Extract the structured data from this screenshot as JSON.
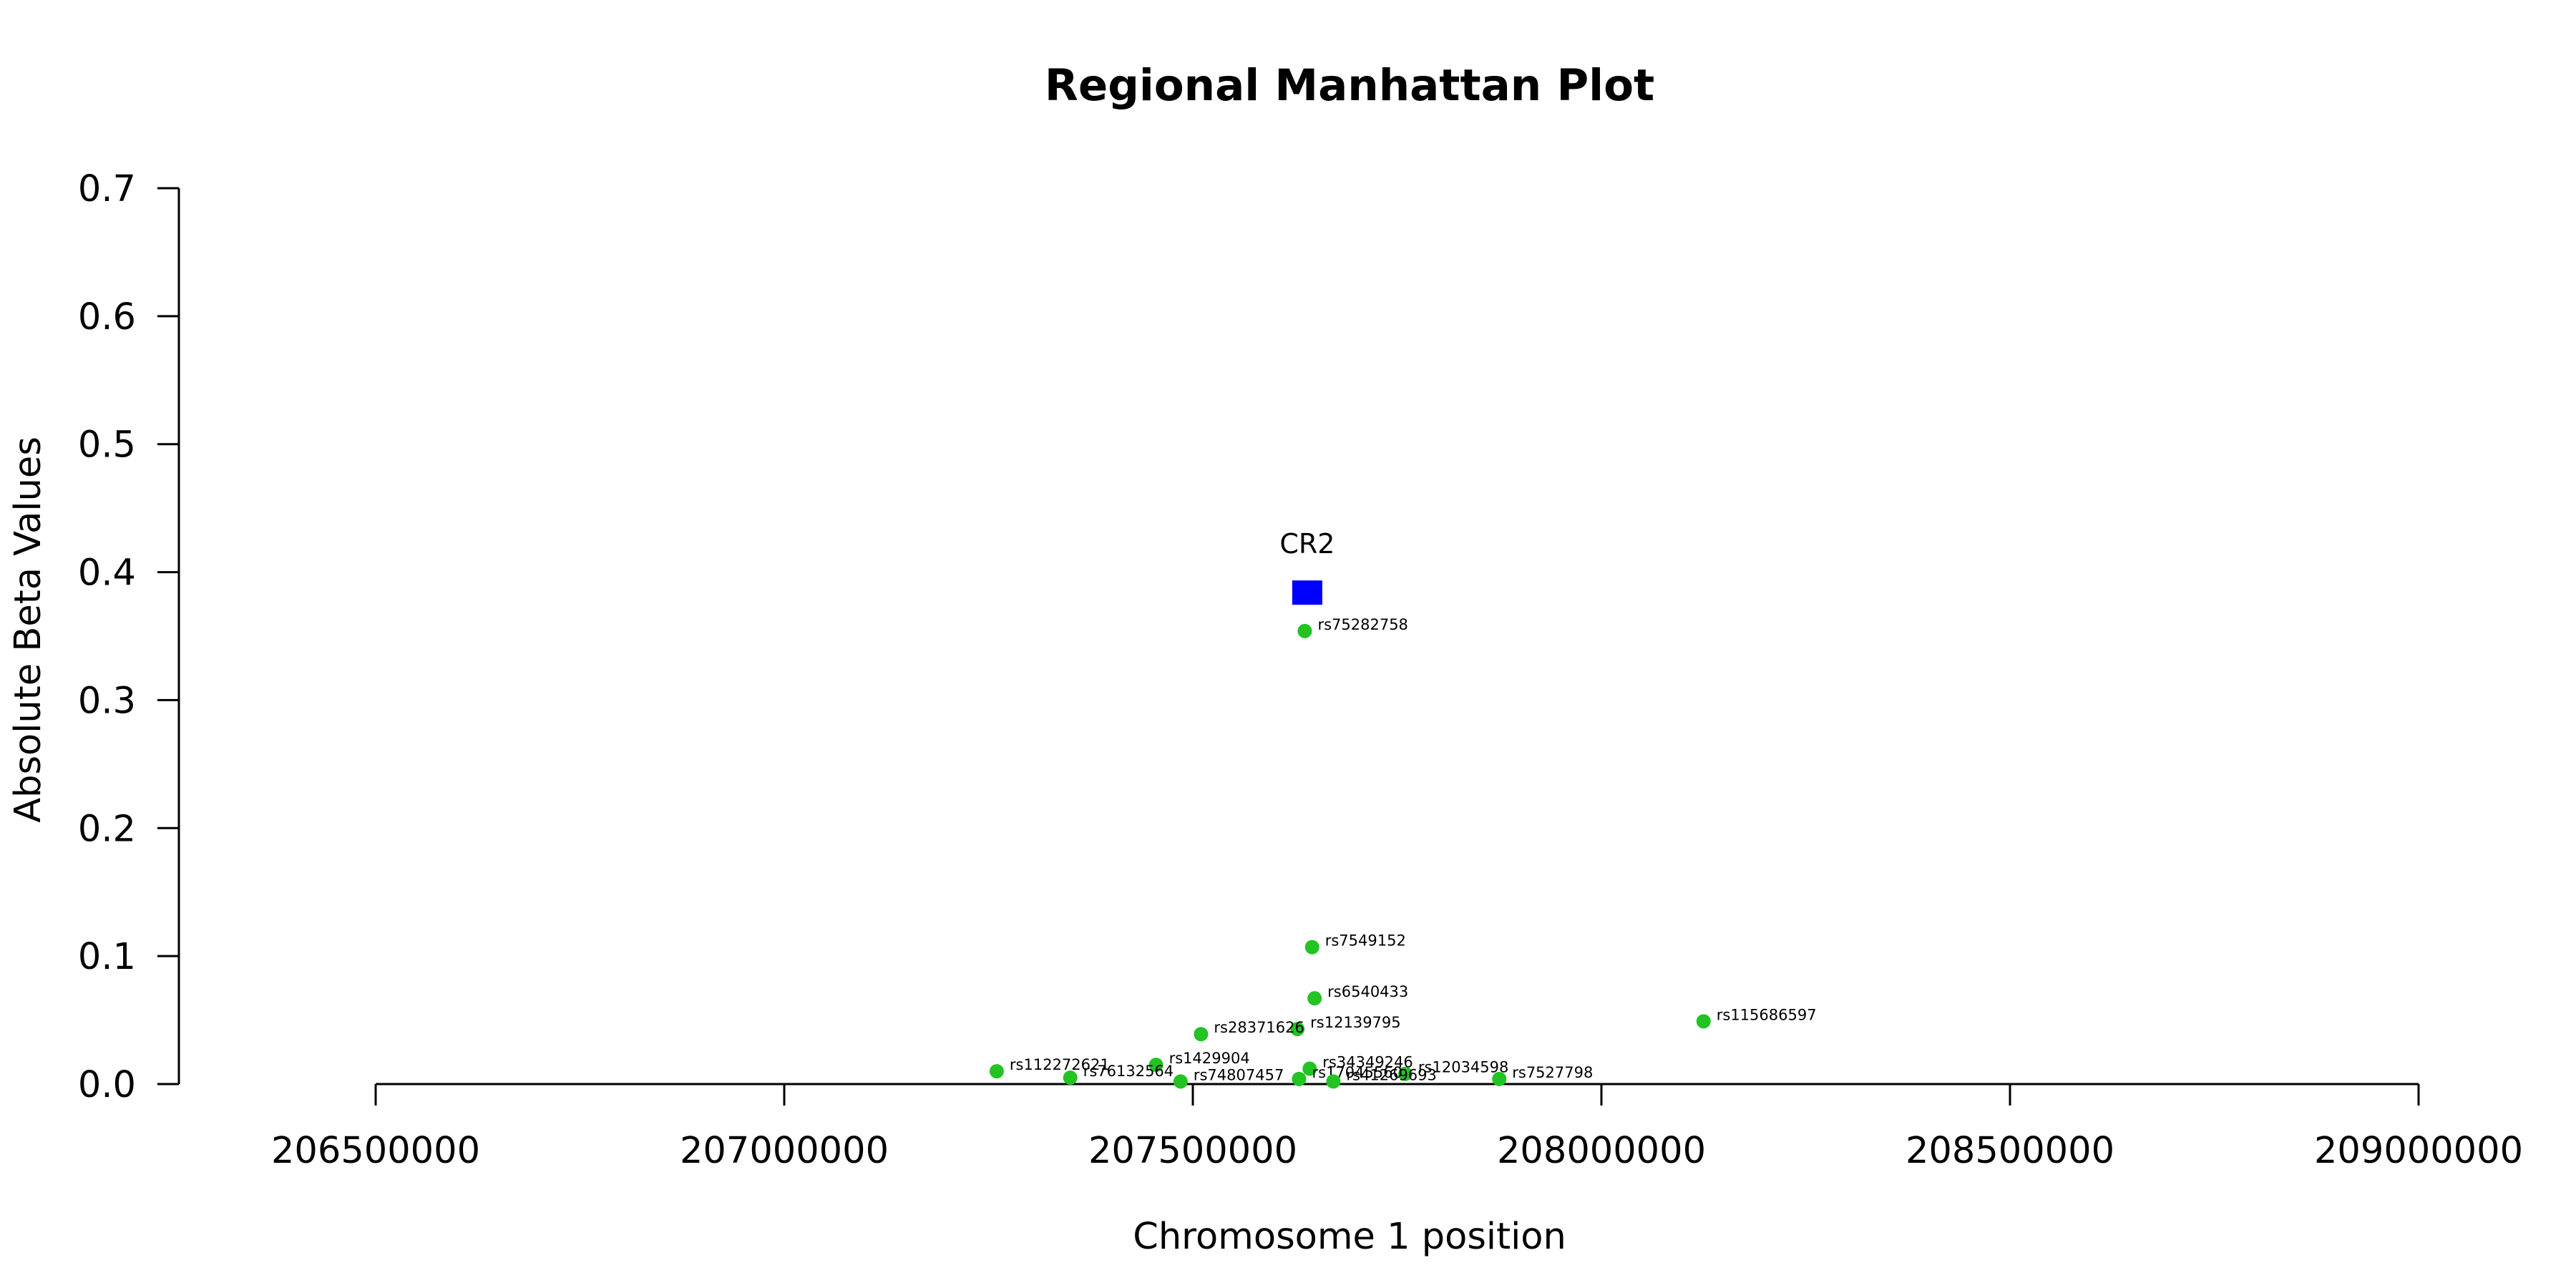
{
  "chart_data": {
    "type": "scatter",
    "title": "Regional Manhattan Plot",
    "xlabel": "Chromosome 1 position",
    "ylabel": "Absolute Beta Values",
    "xlim": [
      206500000,
      209000000
    ],
    "ylim": [
      0,
      0.7
    ],
    "xticks": [
      "206500000",
      "207000000",
      "207500000",
      "208000000",
      "208500000",
      "209000000"
    ],
    "yticks": [
      "0.0",
      "0.1",
      "0.2",
      "0.3",
      "0.4",
      "0.5",
      "0.6",
      "0.7"
    ],
    "colors": {
      "snp": "#22c322",
      "gene": "#0000ff",
      "axis": "#000000"
    },
    "gene": {
      "name": "CR2",
      "x": 207640000,
      "y": 0.384
    },
    "points": [
      {
        "label": "rs75282758",
        "x": 207637000,
        "y": 0.354
      },
      {
        "label": "rs7549152",
        "x": 207646000,
        "y": 0.107
      },
      {
        "label": "rs6540433",
        "x": 207649000,
        "y": 0.067
      },
      {
        "label": "rs115686597",
        "x": 208125000,
        "y": 0.049
      },
      {
        "label": "rs12139795",
        "x": 207628000,
        "y": 0.043
      },
      {
        "label": "rs28371626",
        "x": 207510000,
        "y": 0.039
      },
      {
        "label": "rs1429904",
        "x": 207455000,
        "y": 0.015
      },
      {
        "label": "rs34349246",
        "x": 207643000,
        "y": 0.012
      },
      {
        "label": "rs112272621",
        "x": 207260000,
        "y": 0.01
      },
      {
        "label": "rs12034598",
        "x": 207760000,
        "y": 0.008
      },
      {
        "label": "rs76132564",
        "x": 207350000,
        "y": 0.005
      },
      {
        "label": "rs7527798",
        "x": 207875000,
        "y": 0.004
      },
      {
        "label": "rs17045560",
        "x": 207630000,
        "y": 0.004
      },
      {
        "label": "rs41269693",
        "x": 207672000,
        "y": 0.002
      },
      {
        "label": "rs74807457",
        "x": 207485000,
        "y": 0.002
      }
    ]
  }
}
